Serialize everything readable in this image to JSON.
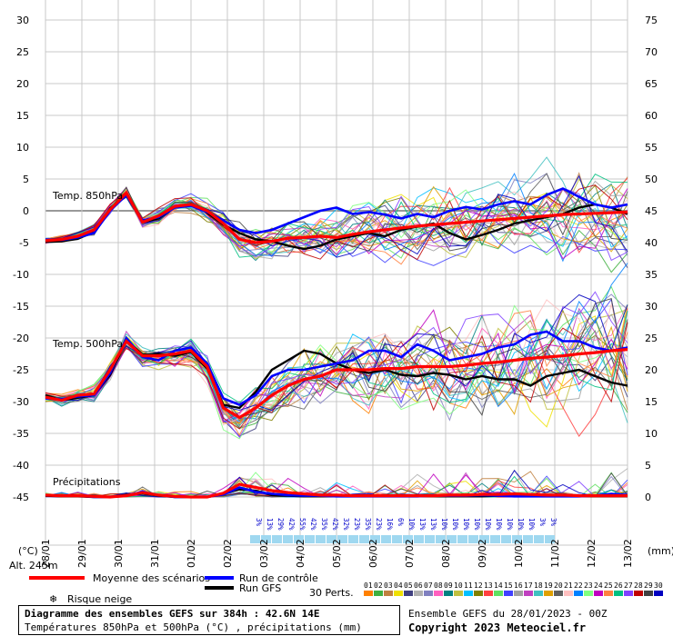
{
  "chart_data": {
    "type": "line",
    "title": "Diagramme des ensembles GEFS sur 384h : 42.6N 14E",
    "subtitle": "Températures 850hPa et 500hPa (°C) , précipitations (mm)",
    "left_axis": {
      "label": "(°C)",
      "ticks": [
        30,
        25,
        20,
        15,
        10,
        5,
        0,
        -5,
        -10,
        -15,
        -20,
        -25,
        -30,
        -35,
        -40,
        -45
      ],
      "ylim": [
        -45,
        30
      ]
    },
    "right_axis": {
      "label": "(mm)",
      "ticks": [
        75,
        70,
        65,
        60,
        55,
        50,
        45,
        40,
        35,
        30,
        25,
        20,
        15,
        10,
        5,
        0
      ],
      "ylim": [
        0,
        75
      ]
    },
    "x_labels": [
      "28/01",
      "29/01",
      "30/01",
      "31/01",
      "01/02",
      "02/02",
      "03/02",
      "04/02",
      "05/02",
      "06/02",
      "07/02",
      "08/02",
      "09/02",
      "10/02",
      "11/02",
      "12/02",
      "13/02"
    ],
    "alt_label": "Alt. 245m",
    "panel_labels": {
      "t850": "Temp. 850hPa",
      "t500": "Temp. 500hPa",
      "precip": "Précipitations"
    },
    "series": [
      {
        "name": "Moyenne des scénarios",
        "color": "#ff0000",
        "t850": [
          -4.7,
          -4.5,
          -4.0,
          -3.0,
          0.2,
          2.8,
          -1.8,
          -0.8,
          0.7,
          1.0,
          0.0,
          -2.0,
          -4.5,
          -5.0,
          -4.8,
          -4.3,
          -4.2,
          -4.0,
          -4.2,
          -3.7,
          -3.3,
          -3.0,
          -2.7,
          -2.4,
          -2.2,
          -2.0,
          -1.8,
          -1.6,
          -1.4,
          -1.2,
          -1.0,
          -0.8,
          -0.6,
          -0.5,
          -0.4,
          -0.3,
          -0.2
        ],
        "t500": [
          -29.3,
          -29.8,
          -29.0,
          -28.8,
          -25.0,
          -20.5,
          -22.8,
          -22.8,
          -22.5,
          -22.0,
          -24.5,
          -31.0,
          -32.5,
          -31.0,
          -29.0,
          -27.5,
          -26.5,
          -26.0,
          -25.0,
          -25.0,
          -25.0,
          -24.8,
          -24.8,
          -24.5,
          -24.5,
          -24.5,
          -24.3,
          -24.0,
          -23.8,
          -23.5,
          -23.2,
          -23.0,
          -22.8,
          -22.5,
          -22.3,
          -22.0,
          -21.8
        ],
        "precip": [
          0.3,
          0.2,
          0.2,
          0.1,
          0,
          0.2,
          0.7,
          0.3,
          0.1,
          0,
          0,
          0.6,
          2.0,
          1.5,
          1.0,
          0.7,
          0.5,
          0.3,
          0.3,
          0.2,
          0.2,
          0.2,
          0.2,
          0.2,
          0.2,
          0.3,
          0.3,
          0.4,
          0.4,
          0.5,
          0.4,
          0.3,
          0.3,
          0.2,
          0.2,
          0.2,
          0.2
        ]
      },
      {
        "name": "Run de contrôle",
        "color": "#0000ff",
        "t850": [
          -4.5,
          -4.6,
          -4.2,
          -3.5,
          0.0,
          2.5,
          -1.5,
          -1.0,
          0.5,
          0.8,
          -0.2,
          -1.5,
          -3.0,
          -3.5,
          -3.0,
          -2.0,
          -1.0,
          0.0,
          0.5,
          -0.5,
          -0.2,
          -0.6,
          -1.2,
          -0.5,
          -1.0,
          0.0,
          0.6,
          0.2,
          1.0,
          1.5,
          1.0,
          2.5,
          3.5,
          2.2,
          1.0,
          0.5,
          1.0
        ],
        "t500": [
          -29.5,
          -29.6,
          -29.2,
          -29.0,
          -25.5,
          -20.0,
          -23.0,
          -23.5,
          -22.0,
          -21.5,
          -24.0,
          -29.5,
          -30.5,
          -29.0,
          -26.0,
          -25.0,
          -25.0,
          -24.5,
          -24.0,
          -23.5,
          -22.0,
          -22.0,
          -23.0,
          -21.0,
          -22.0,
          -23.5,
          -23.0,
          -22.5,
          -21.5,
          -21.0,
          -19.5,
          -19.0,
          -20.5,
          -20.5,
          -21.5,
          -22.0,
          -21.5
        ],
        "precip": [
          0.3,
          0.2,
          0.2,
          0,
          0,
          0.2,
          0.8,
          0.3,
          0,
          0,
          0,
          0.4,
          1.5,
          0.8,
          0.5,
          0.3,
          0.2,
          0.2,
          0.1,
          0.1,
          0.1,
          0.1,
          0.1,
          0.1,
          0.2,
          0.2,
          0.2,
          0.3,
          0.2,
          0.1,
          0.1,
          0.1,
          0.1,
          0.1,
          0.2,
          0.5,
          0.3
        ]
      },
      {
        "name": "Run GFS",
        "color": "#000000",
        "t850": [
          -4.9,
          -4.8,
          -4.4,
          -3.3,
          0.4,
          2.6,
          -1.8,
          -1.2,
          0.6,
          1.1,
          -0.3,
          -2.2,
          -3.5,
          -4.5,
          -4.8,
          -5.5,
          -6.0,
          -5.5,
          -4.5,
          -4.0,
          -3.5,
          -4.0,
          -3.0,
          -2.5,
          -2.0,
          -3.5,
          -4.5,
          -3.8,
          -3.0,
          -2.0,
          -1.5,
          -1.0,
          -0.5,
          0.5,
          1.0,
          0.5,
          -0.5
        ],
        "t500": [
          -29.0,
          -29.8,
          -29.4,
          -29.0,
          -25.8,
          -20.3,
          -22.6,
          -22.5,
          -22.8,
          -22.2,
          -24.8,
          -30.5,
          -31.0,
          -28.5,
          -25.0,
          -23.5,
          -22.0,
          -22.5,
          -24.0,
          -25.0,
          -25.5,
          -25.0,
          -25.8,
          -26.0,
          -25.5,
          -25.8,
          -26.5,
          -26.0,
          -26.5,
          -26.5,
          -27.5,
          -26.0,
          -25.5,
          -25.0,
          -26.0,
          -27.0,
          -27.5
        ],
        "precip": [
          0.2,
          0.1,
          0.1,
          0,
          0,
          0.3,
          0.6,
          0.2,
          0,
          0,
          0,
          0.5,
          1.2,
          1.0,
          0.3,
          0.2,
          0.1,
          0.1,
          0.1,
          0.1,
          0.1,
          0.1,
          0.1,
          0.1,
          0.1,
          0.1,
          0.1,
          0.1,
          0.2,
          0.3,
          0.1,
          0.1,
          0.1,
          0.1,
          0.1,
          0.1,
          0.1
        ]
      }
    ],
    "perturbations": {
      "label": "30 Perts.",
      "count": 30,
      "numbers": [
        "01",
        "02",
        "03",
        "04",
        "05",
        "06",
        "07",
        "08",
        "09",
        "10",
        "11",
        "12",
        "13",
        "14",
        "15",
        "16",
        "17",
        "18",
        "19",
        "20",
        "21",
        "22",
        "23",
        "24",
        "25",
        "26",
        "27",
        "28",
        "29",
        "30"
      ],
      "colors": [
        "#ff8000",
        "#40b040",
        "#c08040",
        "#f0e000",
        "#404080",
        "#b0b0b0",
        "#8080c0",
        "#ff60c0",
        "#008080",
        "#c0c040",
        "#00c0ff",
        "#808000",
        "#ff4040",
        "#60e060",
        "#4040ff",
        "#a0a0a0",
        "#c040c0",
        "#40c0c0",
        "#e0a000",
        "#606060",
        "#ffc0c0",
        "#0080ff",
        "#80ff80",
        "#c000c0",
        "#ff8040",
        "#00c080",
        "#8040ff",
        "#c00000",
        "#404040",
        "#0000c0"
      ]
    },
    "snow_risk": {
      "label": "Risque neige",
      "percents": [
        "3%",
        "13%",
        "29%",
        "42%",
        "55%",
        "42%",
        "35%",
        "42%",
        "32%",
        "23%",
        "35%",
        "23%",
        "16%",
        "6%",
        "10%",
        "13%",
        "13%",
        "10%",
        "10%",
        "10%",
        "10%",
        "10%",
        "10%",
        "10%",
        "10%",
        "10%",
        "3%",
        "3%"
      ]
    },
    "legend": [
      "Moyenne des scénarios",
      "Run de contrôle",
      "Run GFS"
    ]
  },
  "footer": {
    "title": "Diagramme des ensembles GEFS sur 384h : 42.6N 14E",
    "subtitle": "Températures 850hPa et 500hPa (°C) , précipitations (mm)",
    "ensemble": "Ensemble GEFS du 28/01/2023 - 00Z",
    "copyright": "Copyright 2023 Meteociel.fr"
  }
}
